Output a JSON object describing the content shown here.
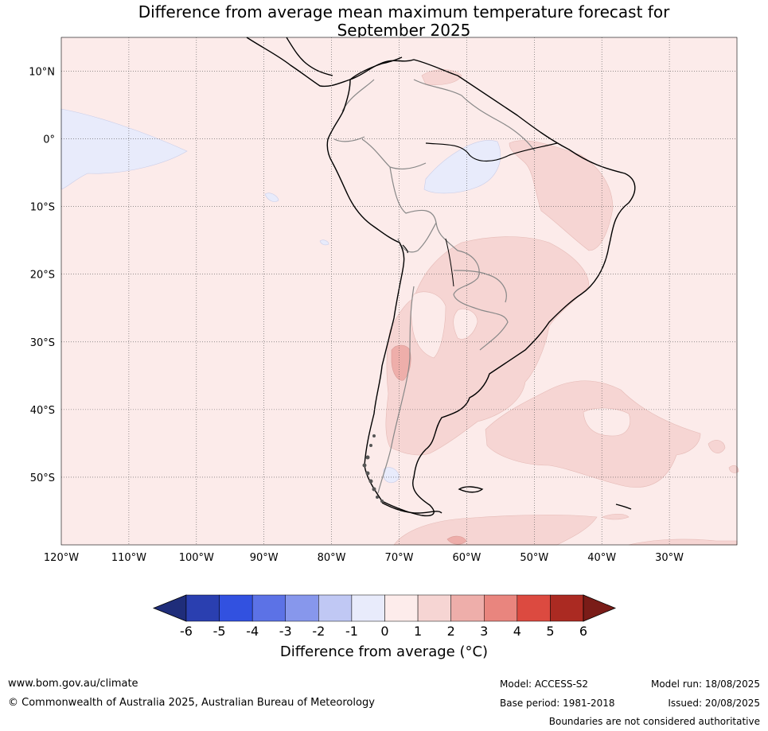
{
  "title": {
    "line1": "Difference from average mean maximum temperature forecast for",
    "line2": "September 2025"
  },
  "map": {
    "region": "South America",
    "lat_labels": [
      "10°N",
      "0°",
      "10°S",
      "20°S",
      "30°S",
      "40°S",
      "50°S"
    ],
    "lat_values": [
      10,
      0,
      -10,
      -20,
      -30,
      -40,
      -50
    ],
    "lon_labels": [
      "120°W",
      "110°W",
      "100°W",
      "90°W",
      "80°W",
      "70°W",
      "60°W",
      "50°W",
      "40°W",
      "30°W"
    ],
    "lon_values": [
      -120,
      -110,
      -100,
      -90,
      -80,
      -70,
      -60,
      -50,
      -40,
      -30
    ],
    "extent": {
      "lon": [
        -120,
        -20
      ],
      "lat": [
        -60,
        15
      ]
    },
    "gridlines": true
  },
  "colorbar": {
    "ticks": [
      "-6",
      "-5",
      "-4",
      "-3",
      "-2",
      "-1",
      "0",
      "1",
      "2",
      "3",
      "4",
      "5",
      "6"
    ],
    "colors": [
      "#1f2d7a",
      "#2a3fb0",
      "#3251e0",
      "#5c72e6",
      "#8797ec",
      "#c0c8f4",
      "#e8ebfb",
      "#fdeceb",
      "#f6d5d3",
      "#eeaeaa",
      "#e9857e",
      "#dc4a40",
      "#ab2a22",
      "#7a1c18"
    ],
    "label": "Difference from average (°C)"
  },
  "footer": {
    "website": "www.bom.gov.au/climate",
    "copyright": "© Commonwealth of Australia 2025, Australian Bureau of Meteorology",
    "model": "Model: ACCESS-S2",
    "base_period": "Base period: 1981-2018",
    "model_run": "Model run: 18/08/2025",
    "issued": "Issued: 20/08/2025",
    "disclaimer": "Boundaries are not considered authoritative"
  }
}
